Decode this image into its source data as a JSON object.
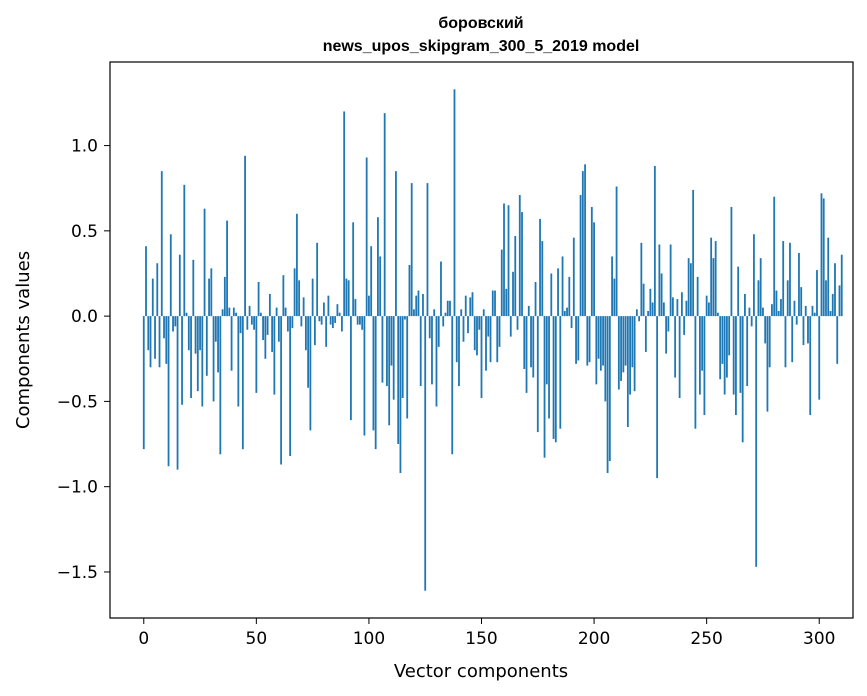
{
  "chart_data": {
    "type": "bar",
    "title": "боровский",
    "subtitle": "news_upos_skipgram_300_5_2019 model",
    "xlabel": "Vector components",
    "ylabel": "Components values",
    "xlim": [
      -15,
      315
    ],
    "ylim": [
      -1.77,
      1.49
    ],
    "xticks": [
      0,
      50,
      100,
      150,
      200,
      250,
      300
    ],
    "xtick_labels": [
      "0",
      "50",
      "100",
      "150",
      "200",
      "250",
      "300"
    ],
    "yticks": [
      -1.5,
      -1.0,
      -0.5,
      0.0,
      0.5,
      1.0
    ],
    "ytick_labels": [
      "−1.5",
      "−1.0",
      "−0.5",
      "0.0",
      "0.5",
      "1.0"
    ],
    "bar_color": "#1f77b4",
    "values": [
      -0.78,
      0.41,
      -0.2,
      -0.3,
      0.22,
      -0.25,
      0.31,
      -0.3,
      0.85,
      -0.13,
      -0.28,
      -0.88,
      0.48,
      -0.09,
      -0.06,
      -0.9,
      0.36,
      -0.52,
      0.77,
      0.02,
      -0.2,
      -0.48,
      0.33,
      -0.22,
      -0.44,
      -0.2,
      -0.53,
      0.63,
      -0.35,
      0.22,
      0.28,
      -0.5,
      -0.15,
      -0.33,
      -0.81,
      0.04,
      0.23,
      0.56,
      0.05,
      -0.32,
      0.05,
      0.02,
      -0.53,
      -0.1,
      -0.78,
      0.94,
      -0.08,
      0.06,
      -0.05,
      -0.08,
      -0.45,
      0.2,
      0.02,
      -0.14,
      -0.25,
      -0.11,
      0.13,
      -0.21,
      -0.46,
      0.05,
      -0.15,
      -0.87,
      0.24,
      0.05,
      -0.09,
      -0.82,
      -0.07,
      0.28,
      0.6,
      0.21,
      -0.06,
      0.11,
      -0.2,
      -0.42,
      -0.67,
      0.22,
      -0.17,
      0.43,
      -0.03,
      -0.05,
      0.08,
      -0.18,
      0.12,
      -0.05,
      -0.07,
      -0.04,
      0.07,
      0.02,
      -0.09,
      1.2,
      0.22,
      0.21,
      -0.61,
      0.55,
      0.1,
      -0.05,
      -0.05,
      -0.08,
      -0.7,
      0.93,
      0.12,
      0.41,
      -0.67,
      -0.78,
      0.58,
      0.35,
      -0.39,
      1.19,
      -0.41,
      -0.64,
      -0.29,
      -0.49,
      0.85,
      -0.75,
      -0.92,
      -0.48,
      -0.02,
      -0.6,
      0.3,
      0.78,
      0.04,
      0.12,
      0.15,
      -0.41,
      0.13,
      -1.61,
      0.78,
      -0.13,
      -0.4,
      0.04,
      -0.53,
      -0.18,
      0.32,
      -0.06,
      0.02,
      0.09,
      0.09,
      -0.81,
      1.33,
      -0.27,
      -0.41,
      0.04,
      -0.15,
      0.12,
      -0.1,
      0.11,
      0.14,
      -0.2,
      -0.23,
      -0.08,
      -0.48,
      0.04,
      -0.32,
      -0.12,
      -0.27,
      0.15,
      0.15,
      -0.27,
      -0.18,
      0.39,
      0.66,
      0.16,
      0.65,
      -0.12,
      0.26,
      0.47,
      -0.08,
      0.71,
      0.61,
      -0.31,
      -0.45,
      0.06,
      -0.3,
      -0.36,
      0.2,
      -0.68,
      0.57,
      0.44,
      -0.83,
      -0.4,
      -0.6,
      0.25,
      -0.72,
      -0.74,
      0.28,
      -0.66,
      0.35,
      0.03,
      0.05,
      0.23,
      -0.07,
      0.46,
      -0.28,
      -0.26,
      0.71,
      0.85,
      0.89,
      -0.29,
      -0.27,
      0.64,
      0.55,
      -0.4,
      -0.25,
      -0.32,
      -0.29,
      -0.5,
      -0.92,
      -0.85,
      0.35,
      0.22,
      0.76,
      -0.43,
      -0.38,
      -0.33,
      -0.29,
      -0.65,
      -0.46,
      -0.3,
      -0.44,
      0.04,
      -0.03,
      0.43,
      0.19,
      -0.21,
      0.03,
      0.16,
      0.08,
      0.88,
      -0.95,
      0.42,
      0.25,
      0.08,
      -0.22,
      -0.09,
      0.42,
      0.11,
      -0.36,
      0.1,
      -0.48,
      0.14,
      -0.11,
      0.09,
      0.34,
      0.31,
      0.74,
      -0.66,
      0.23,
      -0.46,
      -0.32,
      -0.58,
      0.12,
      0.08,
      0.46,
      0.34,
      0.44,
      0.02,
      -0.37,
      -0.28,
      -0.46,
      -0.36,
      -0.23,
      0.64,
      -0.46,
      -0.58,
      0.29,
      -0.45,
      -0.74,
      0.13,
      -0.41,
      0.05,
      -0.06,
      0.48,
      -1.47,
      0.21,
      0.34,
      0.05,
      -0.16,
      -0.56,
      -0.3,
      0.07,
      0.7,
      0.15,
      0.03,
      0.1,
      0.44,
      -0.3,
      0.21,
      0.43,
      -0.27,
      0.09,
      -0.05,
      0.37,
      0.17,
      -0.17,
      0.06,
      -0.16,
      -0.58,
      0.06,
      0.02,
      0.27,
      -0.49,
      0.72,
      0.69,
      0.21,
      0.46,
      0.03,
      0.13,
      0.31,
      -0.28,
      0.18,
      0.36
    ]
  }
}
